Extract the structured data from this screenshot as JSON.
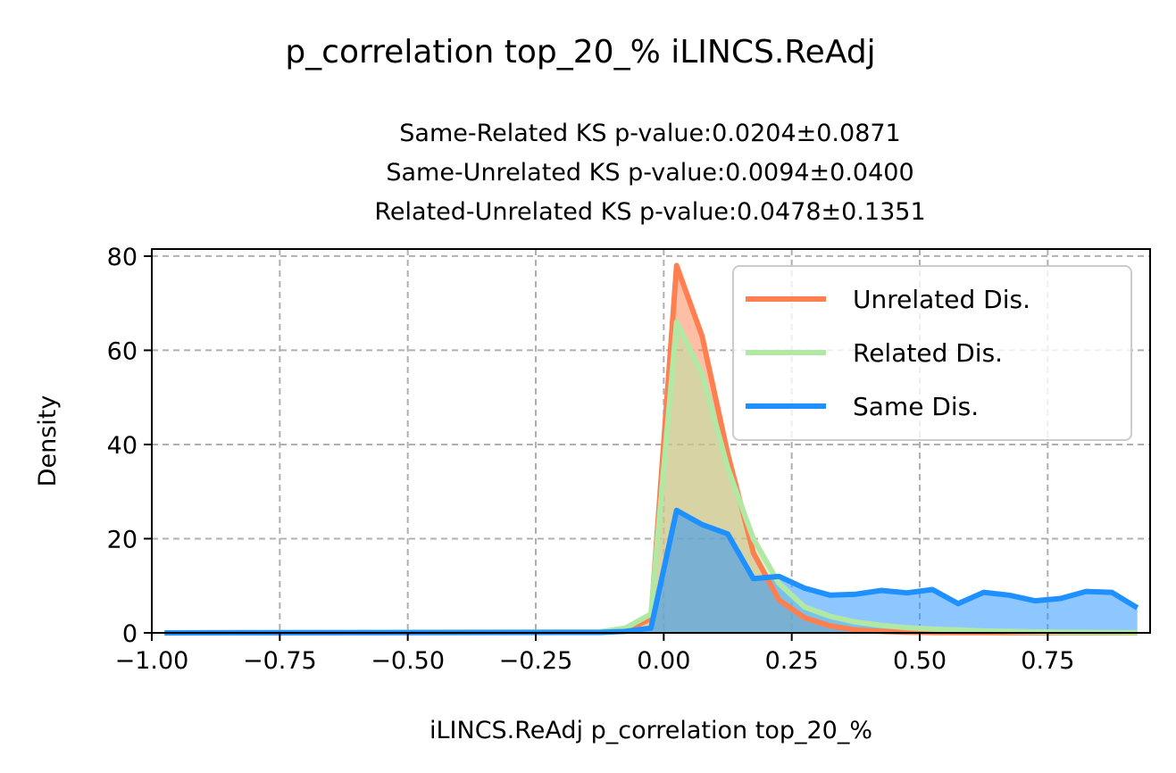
{
  "chart_data": {
    "type": "area",
    "title": "p_correlation top_20_% iLINCS.ReAdj",
    "subtitle_lines": [
      "Same-Related KS p-value:0.0204±0.0871",
      "Same-Unrelated KS p-value:0.0094±0.0400",
      "Related-Unrelated KS p-value:0.0478±0.1351"
    ],
    "xlabel": "iLINCS.ReAdj p_correlation top_20_%",
    "ylabel": "Density",
    "xlim": [
      -1.0,
      0.95
    ],
    "ylim": [
      0,
      81.5
    ],
    "x_ticks": [
      -1.0,
      -0.75,
      -0.5,
      -0.25,
      0.0,
      0.25,
      0.5,
      0.75
    ],
    "x_tick_labels": [
      "−1.00",
      "−0.75",
      "−0.50",
      "−0.25",
      "0.00",
      "0.25",
      "0.50",
      "0.75"
    ],
    "y_ticks": [
      0,
      20,
      40,
      60,
      80
    ],
    "y_tick_labels": [
      "0",
      "20",
      "40",
      "60",
      "80"
    ],
    "grid": true,
    "legend_position": "top-right",
    "series": [
      {
        "name": "Unrelated Dis.",
        "color": "#ff7f50",
        "x": [
          -0.975,
          -0.125,
          -0.075,
          -0.025,
          0.025,
          0.075,
          0.125,
          0.175,
          0.225,
          0.275,
          0.325,
          0.375,
          0.425,
          0.475,
          0.525,
          0.575,
          0.625,
          0.675,
          0.725,
          0.775,
          0.825,
          0.875,
          0.925
        ],
        "values": [
          0,
          0.1,
          0.5,
          3,
          78,
          63,
          38,
          17,
          7,
          3.2,
          1.5,
          0.6,
          0.3,
          0.15,
          0.08,
          0.05,
          0.03,
          0.02,
          0.01,
          0.01,
          0,
          0,
          0
        ]
      },
      {
        "name": "Related Dis.",
        "color": "#b0e8a4",
        "x": [
          -0.975,
          -0.125,
          -0.075,
          -0.025,
          0.025,
          0.075,
          0.125,
          0.175,
          0.225,
          0.275,
          0.325,
          0.375,
          0.425,
          0.475,
          0.525,
          0.575,
          0.625,
          0.675,
          0.725,
          0.775,
          0.825,
          0.875,
          0.925
        ],
        "values": [
          0,
          0.2,
          1,
          4,
          66,
          55,
          35,
          20,
          10.5,
          5.5,
          3.5,
          2.3,
          1.6,
          1.1,
          0.8,
          0.6,
          0.4,
          0.3,
          0.2,
          0.15,
          0.1,
          0.08,
          0.05
        ]
      },
      {
        "name": "Same Dis.",
        "color": "#1e90ff",
        "x": [
          -0.975,
          -0.125,
          -0.075,
          -0.025,
          0.025,
          0.075,
          0.125,
          0.175,
          0.225,
          0.275,
          0.325,
          0.375,
          0.425,
          0.475,
          0.525,
          0.575,
          0.625,
          0.675,
          0.725,
          0.775,
          0.825,
          0.875,
          0.925
        ],
        "values": [
          0,
          0.1,
          0.3,
          1,
          26,
          23,
          21,
          11.5,
          12,
          9.5,
          8,
          8.2,
          9,
          8.5,
          9.2,
          6.2,
          8.6,
          8,
          6.8,
          7.3,
          8.8,
          8.6,
          5.3
        ]
      }
    ]
  }
}
